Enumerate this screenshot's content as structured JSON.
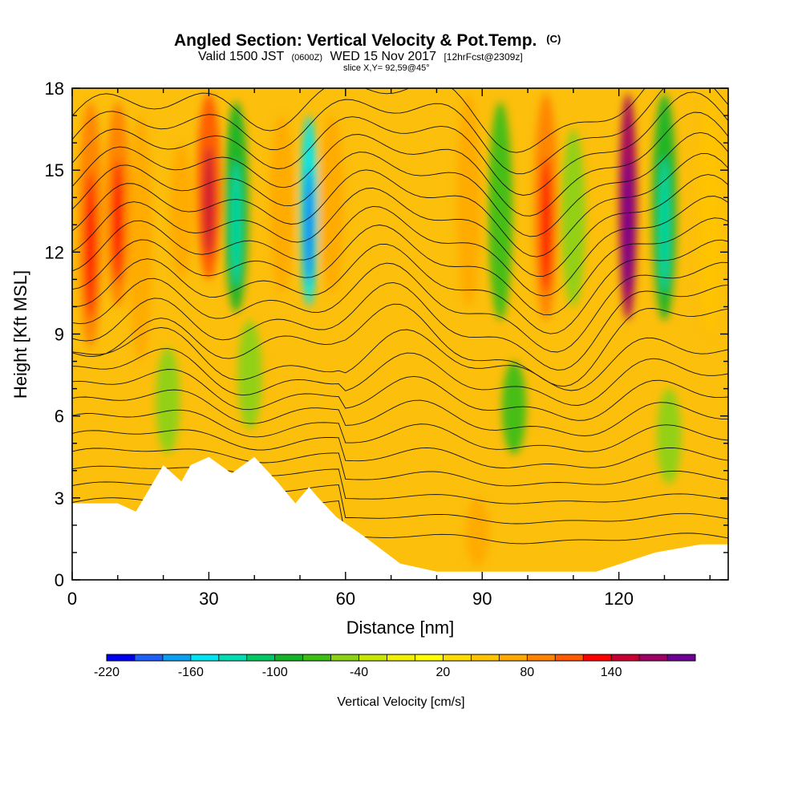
{
  "header": {
    "title": "Angled Section: Vertical Velocity & Pot.Temp.",
    "title_unit": "(C)",
    "valid_prefix": "Valid 1500 JST",
    "valid_utc": "(0600Z)",
    "valid_date": "WED 15 Nov 2017",
    "forecast": "[12hrFcst@2309z]",
    "slice": "slice X,Y= 92,59@45°"
  },
  "chart_data": {
    "type": "heatmap",
    "title": "Angled Section: Vertical Velocity & Pot.Temp.",
    "xlabel": "Distance [nm]",
    "ylabel": "Height [Kft MSL]",
    "xlim": [
      0,
      144
    ],
    "ylim": [
      0,
      18
    ],
    "x_ticks": [
      0,
      30,
      60,
      90,
      120
    ],
    "x_tick_labels": [
      "0",
      "30",
      "60",
      "90",
      "120"
    ],
    "y_ticks": [
      0,
      3,
      6,
      9,
      12,
      15,
      18
    ],
    "y_tick_labels": [
      "0",
      "3",
      "6",
      "9",
      "12",
      "15",
      "18"
    ],
    "grid": false,
    "colorbar": {
      "label": "Vertical Velocity [cm/s]",
      "levels": [
        -220,
        -200,
        -180,
        -160,
        -140,
        -120,
        -100,
        -80,
        -60,
        -40,
        -20,
        0,
        20,
        40,
        60,
        80,
        100,
        120,
        140,
        160,
        180
      ],
      "tick_labels": [
        "-220",
        "-160",
        "-100",
        "-40",
        "20",
        "80",
        "140"
      ],
      "colors": [
        "#0000f0",
        "#1f5ff5",
        "#0aa0f0",
        "#00e6f0",
        "#00dcb4",
        "#00c864",
        "#14b428",
        "#3cbe14",
        "#8cd214",
        "#c8e600",
        "#f0f000",
        "#ffff00",
        "#ffdc00",
        "#ffc300",
        "#ffaa00",
        "#ff8200",
        "#ff5a00",
        "#ff0000",
        "#c80032",
        "#a00064",
        "#6e0096"
      ]
    },
    "vertical_velocity_bands": [
      {
        "x": 4,
        "value": 95,
        "top": 17.5,
        "bottom": 8.5
      },
      {
        "x": 10,
        "value": 85,
        "top": 17.5,
        "bottom": 10
      },
      {
        "x": 15,
        "value": 60,
        "top": 17,
        "bottom": 8
      },
      {
        "x": 21,
        "value": -60,
        "top": 8.5,
        "bottom": 4.6
      },
      {
        "x": 24,
        "value": 70,
        "top": 16,
        "bottom": 11
      },
      {
        "x": 30,
        "value": 115,
        "top": 17.8,
        "bottom": 11
      },
      {
        "x": 36,
        "value": -95,
        "top": 17.5,
        "bottom": 9.8
      },
      {
        "x": 39,
        "value": -45,
        "top": 9.5,
        "bottom": 5.5
      },
      {
        "x": 46,
        "value": 60,
        "top": 17,
        "bottom": 10.5
      },
      {
        "x": 52,
        "value": -150,
        "top": 17,
        "bottom": 10
      },
      {
        "x": 57,
        "value": 60,
        "top": 17,
        "bottom": 10.5
      },
      {
        "x": 87,
        "value": 75,
        "top": 17.8,
        "bottom": 10
      },
      {
        "x": 89,
        "value": 60,
        "top": 3,
        "bottom": 0.5
      },
      {
        "x": 94,
        "value": -75,
        "top": 17.5,
        "bottom": 9.5
      },
      {
        "x": 97,
        "value": -70,
        "top": 8,
        "bottom": 4.6
      },
      {
        "x": 104,
        "value": 85,
        "top": 17.8,
        "bottom": 9.5
      },
      {
        "x": 110,
        "value": -60,
        "top": 16.5,
        "bottom": 10
      },
      {
        "x": 122,
        "value": 165,
        "top": 17.8,
        "bottom": 9.5
      },
      {
        "x": 130,
        "value": -100,
        "top": 17.8,
        "bottom": 9.5
      },
      {
        "x": 131,
        "value": -45,
        "top": 7,
        "bottom": 3.5
      },
      {
        "x": 140,
        "value": 55,
        "top": 17.8,
        "bottom": 9
      }
    ],
    "terrain_height": {
      "x": [
        0,
        10,
        14,
        14,
        20,
        20,
        24,
        24,
        26,
        26,
        30,
        30,
        35,
        35,
        40,
        40,
        45,
        45,
        49,
        49,
        52,
        52,
        54,
        54,
        58,
        58,
        64,
        64,
        72,
        72,
        80,
        80,
        90,
        90,
        100,
        100,
        106,
        106,
        110,
        110,
        115,
        115,
        128,
        128,
        138,
        138,
        144
      ],
      "y": [
        2.8,
        2.8,
        2.5,
        2.5,
        4.2,
        4.2,
        3.6,
        3.6,
        4.2,
        4.2,
        4.5,
        4.5,
        3.9,
        3.9,
        4.5,
        4.5,
        3.6,
        3.6,
        2.8,
        2.8,
        3.4,
        3.4,
        3.0,
        3.0,
        2.3,
        2.3,
        1.6,
        1.6,
        0.6,
        0.6,
        0.3,
        0.3,
        0.3,
        0.3,
        0.3,
        0.3,
        0.3,
        0.3,
        0.3,
        0.3,
        0.3,
        0.3,
        1.0,
        1.0,
        1.3,
        1.3,
        1.3
      ]
    },
    "potential_temperature_contour_count": 23
  }
}
